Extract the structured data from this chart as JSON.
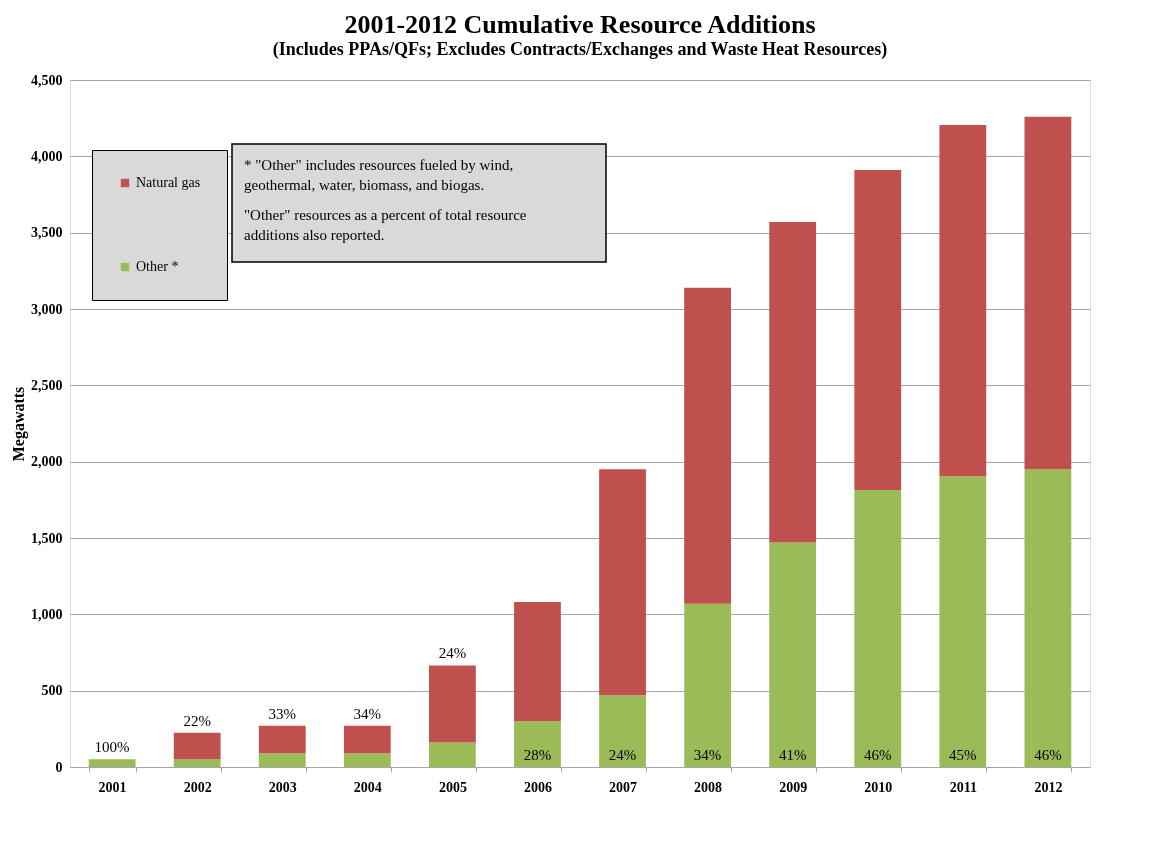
{
  "chart_data": {
    "type": "bar",
    "title": "2001-2012 Cumulative Resource Additions",
    "subtitle": "(Includes PPAs/QFs; Excludes Contracts/Exchanges and Waste Heat Resources)",
    "ylabel": "Megawatts",
    "categories": [
      "2001",
      "2002",
      "2003",
      "2004",
      "2005",
      "2006",
      "2007",
      "2008",
      "2009",
      "2010",
      "2011",
      "2012"
    ],
    "stacked": true,
    "series": [
      {
        "name": "Other *",
        "color": "#9bbb59",
        "values": [
          50,
          50,
          90,
          90,
          160,
          300,
          470,
          1070,
          1470,
          1815,
          1905,
          1950
        ]
      },
      {
        "name": "Natural gas",
        "color": "#c0504d",
        "values": [
          0,
          175,
          180,
          180,
          505,
          780,
          1480,
          2070,
          2100,
          2095,
          2300,
          2310
        ]
      }
    ],
    "ylim": [
      0,
      4500
    ],
    "yticks": [
      0,
      500,
      {
        "value": 1000,
        "label": "1,000"
      },
      {
        "value": 1500,
        "label": "1,500"
      },
      {
        "value": 2000,
        "label": "2,000"
      },
      {
        "value": 2500,
        "label": "2,500"
      },
      {
        "value": 3000,
        "label": "3,000"
      },
      {
        "value": 3500,
        "label": "3,500"
      },
      {
        "value": 4000,
        "label": "4,000"
      },
      {
        "value": 4500,
        "label": "4,500"
      }
    ],
    "grid": "y",
    "legend": "top left",
    "annotations": [
      "* \"Other\" includes resources fueled by wind, geothermal, water, biomass, and biogas.",
      "\"Other\" resources as a percent of total resource additions also reported.",
      {
        "text": "100%",
        "x": "2001",
        "y": 50
      },
      {
        "text": "22%",
        "x": "2002",
        "y": 225
      },
      {
        "text": "33%",
        "x": "2003",
        "y": 270
      },
      {
        "text": "34%",
        "x": "2004",
        "y": 270
      },
      {
        "text": "24%",
        "x": "2005",
        "y": 665
      },
      {
        "text": "28%",
        "x": "2006",
        "y": 0
      },
      {
        "text": "24%",
        "x": "2007",
        "y": 0
      },
      {
        "text": "34%",
        "x": "2008",
        "y": 0
      },
      {
        "text": "41%",
        "x": "2009",
        "y": 0
      },
      {
        "text": "46%",
        "x": "2010",
        "y": 0
      },
      {
        "text": "45%",
        "x": "2011",
        "y": 0
      },
      {
        "text": "46%",
        "x": "2012",
        "y": 0
      }
    ]
  }
}
